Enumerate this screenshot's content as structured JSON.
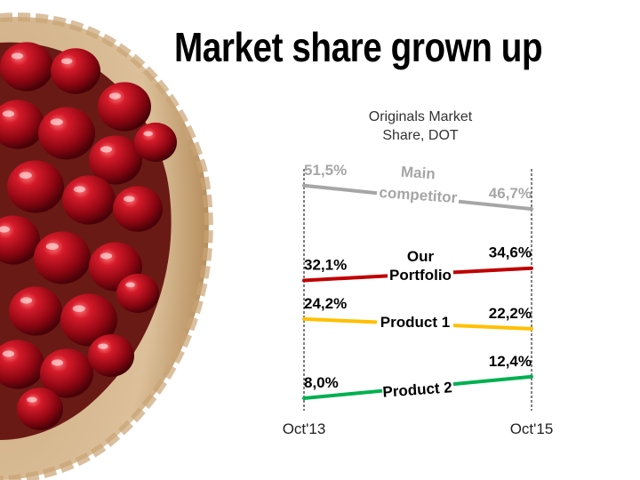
{
  "slide": {
    "title": "Market share grown up"
  },
  "chart_data": {
    "type": "line",
    "title": "Originals Market Share, DOT",
    "title_lines": [
      "Originals Market",
      "Share, DOT"
    ],
    "x": [
      "Oct'13",
      "Oct'15"
    ],
    "series": [
      {
        "name": "Main competitor",
        "label_lines": [
          "Main",
          "competitor"
        ],
        "values": [
          51.5,
          46.7
        ],
        "value_labels": [
          "51,5%",
          "46,7%"
        ],
        "color": "#a6a6a6"
      },
      {
        "name": "Our Portfolio",
        "label_lines": [
          "Our",
          "Portfolio"
        ],
        "values": [
          32.1,
          34.6
        ],
        "value_labels": [
          "32,1%",
          "34,6%"
        ],
        "color": "#c00000"
      },
      {
        "name": "Product 1",
        "label_lines": [
          "Product 1"
        ],
        "values": [
          24.2,
          22.2
        ],
        "value_labels": [
          "24,2%",
          "22,2%"
        ],
        "color": "#ffc000"
      },
      {
        "name": "Product 2",
        "label_lines": [
          "Product 2"
        ],
        "values": [
          8.0,
          12.4
        ],
        "value_labels": [
          "8,0%",
          "12,4%"
        ],
        "color": "#00b050"
      }
    ],
    "grid": false,
    "legend": "inline"
  },
  "decoration": {
    "image": "cherry-tart-icon"
  }
}
